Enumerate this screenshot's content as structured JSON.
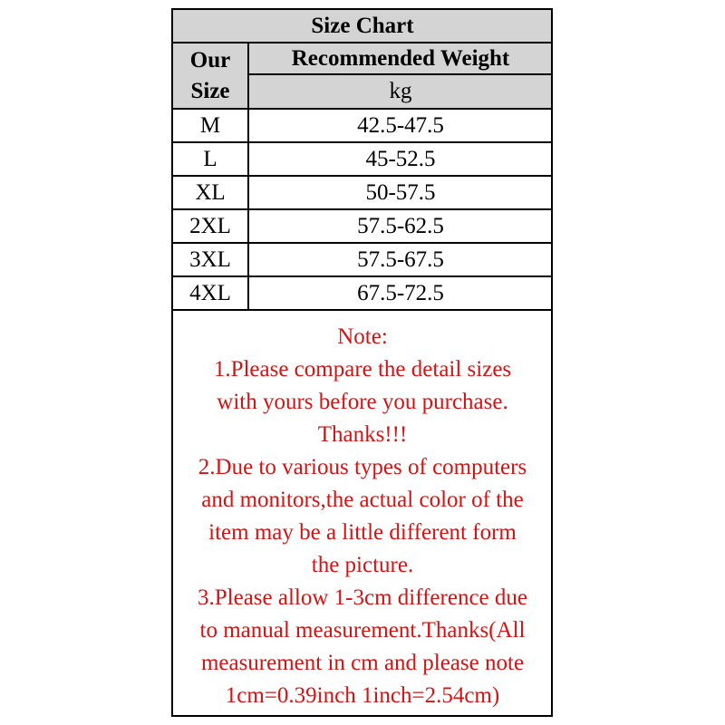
{
  "header": {
    "title": "Size Chart"
  },
  "table": {
    "columns": [
      "Our Size",
      "Recommended Weight"
    ],
    "unit": "kg",
    "rows": [
      [
        "M",
        "42.5-47.5"
      ],
      [
        "L",
        "45-52.5"
      ],
      [
        "XL",
        "50-57.5"
      ],
      [
        "2XL",
        "57.5-62.5"
      ],
      [
        "3XL",
        "57.5-67.5"
      ],
      [
        "4XL",
        "67.5-72.5"
      ]
    ]
  },
  "note": {
    "title": "Note:",
    "lines": [
      "1.Please compare the detail sizes",
      "with yours before you purchase.",
      "Thanks!!!",
      "2.Due to various types of computers",
      "and monitors,the actual color of the",
      "item may be a little different form",
      "the picture.",
      "3.Please allow 1-3cm difference due",
      "to manual measurement.Thanks(All",
      "measurement in cm and please note",
      "1cm=0.39inch 1inch=2.54cm)"
    ]
  }
}
